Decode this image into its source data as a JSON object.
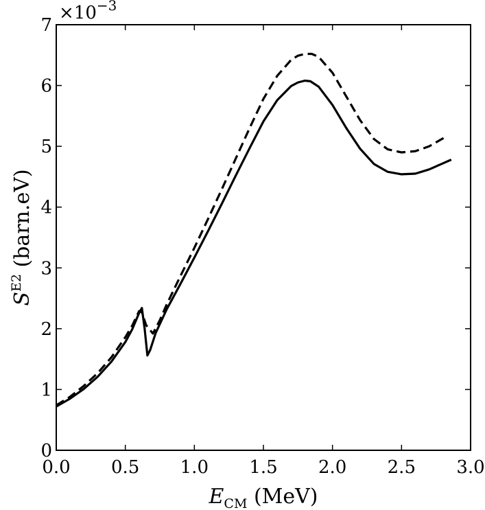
{
  "chart_data": {
    "type": "line",
    "xlim": [
      0.0,
      3.0
    ],
    "ylim": [
      0,
      7
    ],
    "y_scale_factor_label": "×10",
    "y_scale_factor_exponent": "−3",
    "x_tick_labels": [
      "0.0",
      "0.5",
      "1.0",
      "1.5",
      "2.0",
      "2.5",
      "3.0"
    ],
    "y_tick_labels": [
      "0",
      "1",
      "2",
      "3",
      "4",
      "5",
      "6",
      "7"
    ],
    "xlabel": {
      "main": "E",
      "sub": "CM",
      "rest": " (MeV)"
    },
    "ylabel": {
      "main": "S",
      "sup": "E2",
      "rest": " (barn.eV)"
    },
    "grid": false,
    "series": [
      {
        "style": "solid",
        "x": [
          0.0,
          0.1,
          0.2,
          0.3,
          0.4,
          0.5,
          0.55,
          0.6,
          0.62,
          0.64,
          0.66,
          0.68,
          0.72,
          0.8,
          0.9,
          1.0,
          1.1,
          1.2,
          1.3,
          1.4,
          1.5,
          1.6,
          1.7,
          1.75,
          1.8,
          1.84,
          1.9,
          2.0,
          2.1,
          2.2,
          2.3,
          2.4,
          2.5,
          2.6,
          2.7,
          2.8,
          2.86
        ],
        "y": [
          0.72,
          0.85,
          1.01,
          1.21,
          1.46,
          1.78,
          1.99,
          2.26,
          2.34,
          2.0,
          1.56,
          1.65,
          1.93,
          2.32,
          2.74,
          3.17,
          3.61,
          4.06,
          4.52,
          4.97,
          5.41,
          5.76,
          5.99,
          6.05,
          6.08,
          6.07,
          5.98,
          5.68,
          5.3,
          4.96,
          4.71,
          4.58,
          4.54,
          4.55,
          4.62,
          4.72,
          4.78
        ]
      },
      {
        "style": "dashed",
        "x": [
          0.0,
          0.1,
          0.2,
          0.3,
          0.4,
          0.5,
          0.55,
          0.6,
          0.62,
          0.65,
          0.7,
          0.75,
          0.8,
          0.9,
          1.0,
          1.1,
          1.2,
          1.3,
          1.4,
          1.5,
          1.6,
          1.7,
          1.75,
          1.8,
          1.85,
          1.9,
          2.0,
          2.1,
          2.2,
          2.3,
          2.4,
          2.5,
          2.6,
          2.7,
          2.8,
          2.82
        ],
        "y": [
          0.74,
          0.88,
          1.06,
          1.27,
          1.53,
          1.86,
          2.05,
          2.29,
          2.27,
          2.06,
          1.92,
          2.14,
          2.4,
          2.87,
          3.33,
          3.81,
          4.3,
          4.8,
          5.3,
          5.78,
          6.16,
          6.42,
          6.49,
          6.52,
          6.52,
          6.47,
          6.21,
          5.82,
          5.43,
          5.12,
          4.95,
          4.9,
          4.92,
          5.0,
          5.13,
          5.17
        ]
      }
    ]
  }
}
